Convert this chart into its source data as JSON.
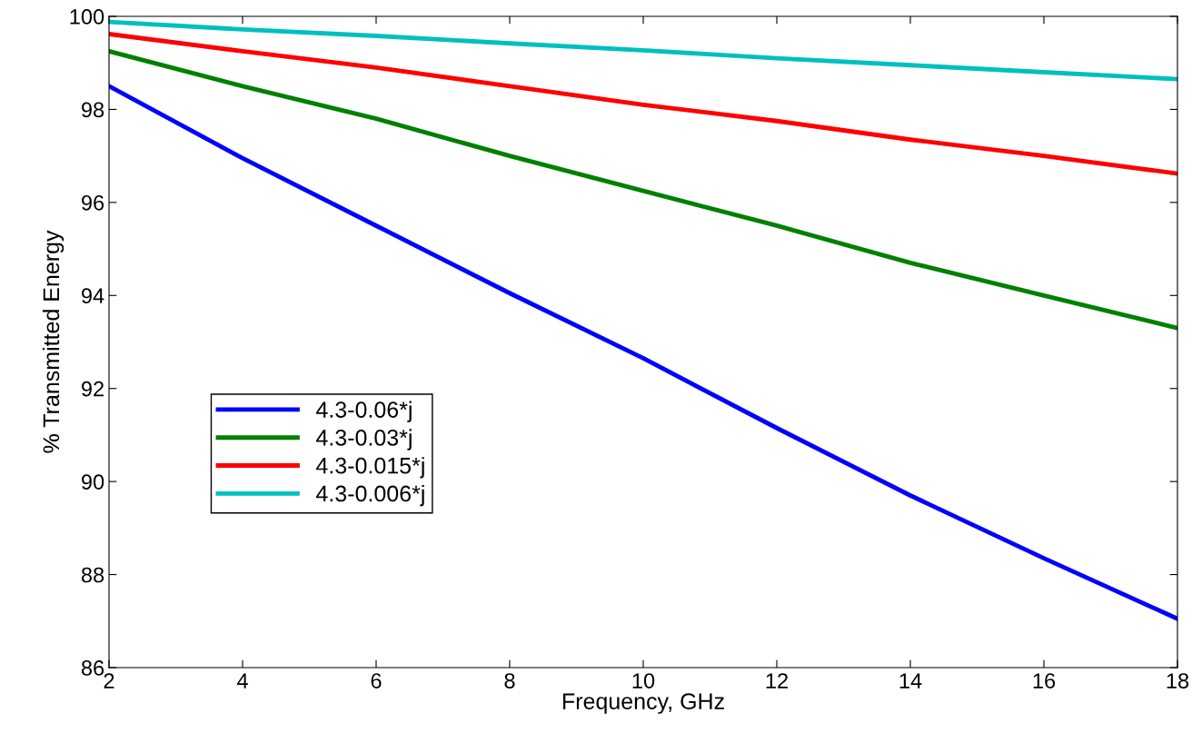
{
  "chart_data": {
    "type": "line",
    "xlabel": "Frequency, GHz",
    "ylabel": "% Transmitted Energy",
    "x": [
      2,
      4,
      6,
      8,
      10,
      12,
      14,
      16,
      18
    ],
    "series": [
      {
        "name": "4.3-0.06*j",
        "color": "#0000ff",
        "values": [
          98.5,
          96.95,
          95.5,
          94.05,
          92.65,
          91.15,
          89.7,
          88.35,
          87.05
        ]
      },
      {
        "name": "4.3-0.03*j",
        "color": "#008000",
        "values": [
          99.25,
          98.5,
          97.8,
          97.0,
          96.25,
          95.5,
          94.7,
          94.0,
          93.3
        ]
      },
      {
        "name": "4.3-0.015*j",
        "color": "#ff0000",
        "values": [
          99.62,
          99.25,
          98.9,
          98.5,
          98.1,
          97.75,
          97.35,
          97.0,
          96.62
        ]
      },
      {
        "name": "4.3-0.006*j",
        "color": "#00bfbf",
        "values": [
          99.88,
          99.72,
          99.58,
          99.42,
          99.27,
          99.1,
          98.95,
          98.8,
          98.65
        ]
      }
    ],
    "xlim": [
      2,
      18
    ],
    "xticks": [
      2,
      4,
      6,
      8,
      10,
      12,
      14,
      16,
      18
    ],
    "ylim": [
      86,
      100
    ],
    "yticks": [
      86,
      88,
      90,
      92,
      94,
      96,
      98,
      100
    ],
    "grid": false,
    "legend": "lower left",
    "marker": "none",
    "line_style": "solid"
  }
}
